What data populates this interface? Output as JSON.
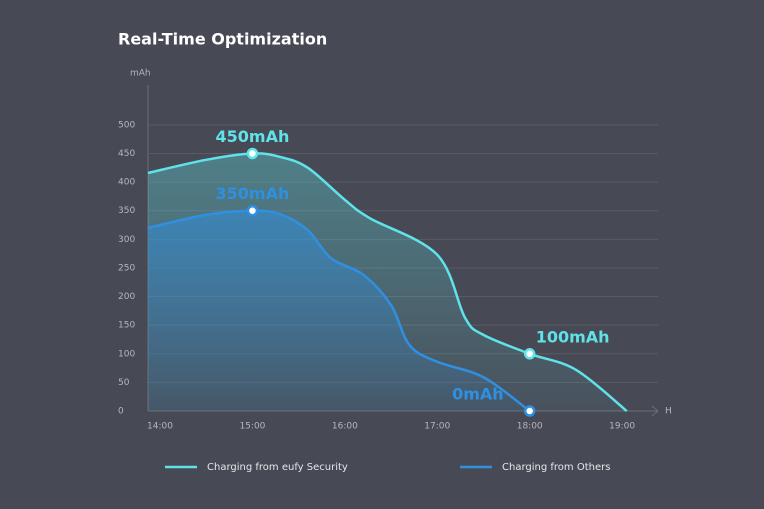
{
  "chart_data": {
    "type": "line",
    "title": "Real-Time Optimization",
    "ylabel": "mAh",
    "xlabel": "H",
    "ylim": [
      0,
      540
    ],
    "yticks": [
      0,
      50,
      100,
      150,
      200,
      250,
      300,
      350,
      400,
      450,
      500
    ],
    "xlim": [
      13.87,
      19.41
    ],
    "xticks": [
      {
        "value": 14,
        "label": "14:00"
      },
      {
        "value": 15,
        "label": "15:00"
      },
      {
        "value": 16,
        "label": "16:00"
      },
      {
        "value": 17,
        "label": "17:00"
      },
      {
        "value": 18,
        "label": "18:00"
      },
      {
        "value": 19,
        "label": "19:00"
      }
    ],
    "grid": true,
    "series": [
      {
        "name": "Charging from eufy Security",
        "color": "#5fe2e8",
        "x": [
          13.87,
          14.5,
          15,
          15.3,
          15.6,
          16,
          16.27,
          17,
          17.3,
          17.5,
          18,
          18.5,
          19.05
        ],
        "values": [
          416,
          439,
          450,
          444,
          425,
          369,
          337,
          273,
          163,
          133,
          100,
          72,
          0
        ],
        "value_labels": [
          null,
          null,
          "450mAh",
          null,
          null,
          null,
          null,
          null,
          null,
          null,
          "100mAh",
          null,
          null
        ]
      },
      {
        "name": "Charging from Others",
        "color": "#2f90e2",
        "x": [
          13.87,
          14.5,
          15,
          15.3,
          15.6,
          15.85,
          16.2,
          16.5,
          16.7,
          17,
          17.5,
          18
        ],
        "values": [
          320,
          343,
          350,
          344,
          316,
          267,
          238,
          185,
          115,
          86,
          59,
          0
        ],
        "value_labels": [
          null,
          null,
          "350mAh",
          null,
          null,
          null,
          null,
          null,
          null,
          null,
          null,
          "0mAh"
        ]
      }
    ]
  }
}
